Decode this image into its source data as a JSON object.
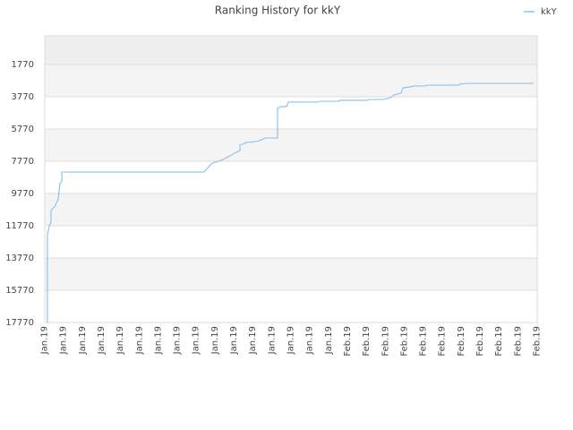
{
  "chart_data": {
    "type": "line",
    "title": "Ranking History for kkY",
    "categories": [
      "Jan.19",
      "Jan.19",
      "Jan.19",
      "Jan.19",
      "Jan.19",
      "Jan.19",
      "Jan.19",
      "Jan.19",
      "Jan.19",
      "Jan.19",
      "Jan.19",
      "Jan.19",
      "Jan.19",
      "Jan.19",
      "Jan.19",
      "Jan.19",
      "Feb.19",
      "Feb.19",
      "Feb.19",
      "Feb.19",
      "Feb.19",
      "Feb.19",
      "Feb.19",
      "Feb.19",
      "Feb.19",
      "Feb.19",
      "Feb.19"
    ],
    "xlim": [
      0,
      26
    ],
    "ylim": [
      17770,
      -8
    ],
    "yticks": [
      1770,
      3770,
      5770,
      7770,
      9770,
      11770,
      13770,
      15770,
      17770
    ],
    "grid": true,
    "legend": "top-right",
    "series": [
      {
        "name": "kkY",
        "color": "#8ec3ee",
        "x": [
          0.14,
          0.14,
          0.24,
          0.33,
          0.33,
          0.57,
          0.71,
          0.8,
          0.9,
          0.9,
          8.41,
          8.79,
          8.98,
          9.31,
          9.69,
          10.02,
          10.31,
          10.31,
          10.68,
          11.16,
          11.44,
          11.63,
          12.29,
          12.29,
          12.48,
          12.76,
          12.86,
          14.42,
          14.56,
          15.51,
          15.6,
          17.02,
          17.11,
          17.87,
          18.25,
          18.44,
          18.81,
          18.91,
          19.29,
          19.48,
          20.04,
          20.23,
          21.84,
          21.93,
          22.31,
          25.81
        ],
        "values": [
          17770,
          12330,
          11770,
          11550,
          10830,
          10490,
          10100,
          9160,
          8990,
          8440,
          8440,
          7940,
          7830,
          7720,
          7490,
          7270,
          7100,
          6770,
          6600,
          6550,
          6440,
          6330,
          6330,
          4490,
          4380,
          4380,
          4100,
          4100,
          4050,
          4050,
          3990,
          3990,
          3940,
          3940,
          3830,
          3660,
          3550,
          3220,
          3160,
          3100,
          3100,
          3050,
          3050,
          2990,
          2940,
          2940
        ]
      }
    ]
  }
}
